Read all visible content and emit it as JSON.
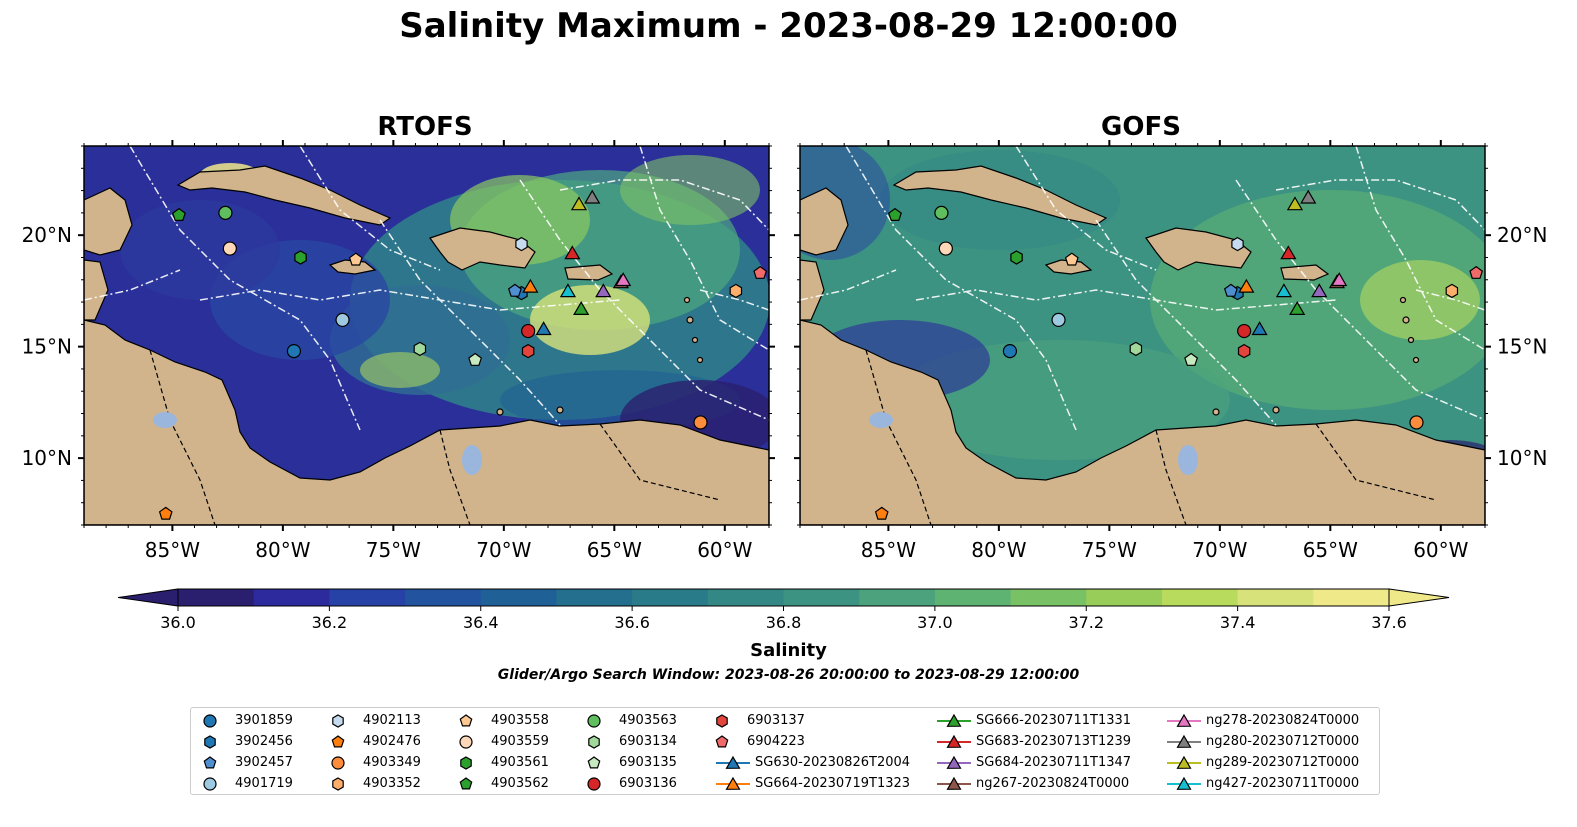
{
  "title": "Salinity Maximum - 2023-08-29 12:00:00",
  "panels": [
    {
      "name": "RTOFS"
    },
    {
      "name": "GOFS"
    }
  ],
  "axes": {
    "lon_ticks": [
      "85°W",
      "80°W",
      "75°W",
      "70°W",
      "65°W",
      "60°W"
    ],
    "lat_ticks": [
      "20°N",
      "15°N",
      "10°N"
    ],
    "lon_range": [
      -89,
      -58
    ],
    "lat_range": [
      7,
      24
    ]
  },
  "colorbar": {
    "label": "Salinity",
    "ticks": [
      "36.0",
      "36.2",
      "36.4",
      "36.6",
      "36.8",
      "37.0",
      "37.2",
      "37.4",
      "37.6"
    ],
    "range": [
      36.0,
      37.6
    ],
    "colors": [
      "#2a1f6e",
      "#2c2a9c",
      "#2742a6",
      "#22539f",
      "#1f6196",
      "#246e8e",
      "#2a7b89",
      "#338784",
      "#3d9382",
      "#4ba27c",
      "#5eb272",
      "#79c165",
      "#98cd5a",
      "#b8da5d",
      "#d7e37a",
      "#f0e98a"
    ]
  },
  "search_window": "Glider/Argo Search Window: 2023-08-26 20:00:00 to 2023-08-29 12:00:00",
  "colors": {
    "land": "#d2b48c",
    "ocean_low": "#2a1f6e",
    "eez_lines": "#ffffff",
    "rivers": "#9ab6dc"
  },
  "legend": [
    {
      "label": "3901859",
      "marker": "circle",
      "color": "#1f77b4"
    },
    {
      "label": "3902456",
      "marker": "hexagon",
      "color": "#1f77b4"
    },
    {
      "label": "3902457",
      "marker": "pentagon",
      "color": "#4f8fd0"
    },
    {
      "label": "4901719",
      "marker": "circle",
      "color": "#9ecae1"
    },
    {
      "label": "4902113",
      "marker": "hexagon",
      "color": "#c6dbef"
    },
    {
      "label": "4902476",
      "marker": "pentagon",
      "color": "#ff7f0e"
    },
    {
      "label": "4903349",
      "marker": "circle",
      "color": "#fd8d3c"
    },
    {
      "label": "4903352",
      "marker": "hexagon",
      "color": "#fdae6b"
    },
    {
      "label": "4903558",
      "marker": "pentagon",
      "color": "#fdc891"
    },
    {
      "label": "4903559",
      "marker": "circle",
      "color": "#fdd8b8"
    },
    {
      "label": "4903561",
      "marker": "hexagon",
      "color": "#2ca02c"
    },
    {
      "label": "4903562",
      "marker": "pentagon",
      "color": "#2ca02c"
    },
    {
      "label": "4903563",
      "marker": "circle",
      "color": "#5fbf5f"
    },
    {
      "label": "6903134",
      "marker": "hexagon",
      "color": "#a1d99b"
    },
    {
      "label": "6903135",
      "marker": "pentagon",
      "color": "#c7e9c0"
    },
    {
      "label": "6903136",
      "marker": "circle",
      "color": "#d62728"
    },
    {
      "label": "6903137",
      "marker": "hexagon",
      "color": "#e3443b"
    },
    {
      "label": "6904223",
      "marker": "pentagon",
      "color": "#f06a6a"
    },
    {
      "label": "SG630-20230826T2004",
      "marker": "triangle-line",
      "color": "#1f77b4"
    },
    {
      "label": "SG664-20230719T1323",
      "marker": "triangle-line",
      "color": "#ff7f0e"
    },
    {
      "label": "SG666-20230711T1331",
      "marker": "triangle-line",
      "color": "#2ca02c"
    },
    {
      "label": "SG683-20230713T1239",
      "marker": "triangle-line",
      "color": "#d62728"
    },
    {
      "label": "SG684-20230711T1347",
      "marker": "triangle-line",
      "color": "#9467bd"
    },
    {
      "label": "ng267-20230824T0000",
      "marker": "triangle-line",
      "color": "#8c564b"
    },
    {
      "label": "ng278-20230824T0000",
      "marker": "triangle-line",
      "color": "#e377c2"
    },
    {
      "label": "ng280-20230712T0000",
      "marker": "triangle-line",
      "color": "#7f7f7f"
    },
    {
      "label": "ng289-20230712T0000",
      "marker": "triangle-line",
      "color": "#bcbd22"
    },
    {
      "label": "ng427-20230711T0000",
      "marker": "triangle-line",
      "color": "#17becf"
    }
  ],
  "observations": [
    {
      "id": "3901859",
      "lon": -79.5,
      "lat": 14.8
    },
    {
      "id": "3902456",
      "lon": -69.2,
      "lat": 17.4
    },
    {
      "id": "3902457",
      "lon": -69.5,
      "lat": 17.5
    },
    {
      "id": "4901719",
      "lon": -77.3,
      "lat": 16.2
    },
    {
      "id": "4902113",
      "lon": -69.2,
      "lat": 19.6
    },
    {
      "id": "4902476",
      "lon": -85.3,
      "lat": 7.5
    },
    {
      "id": "4903349",
      "lon": -61.1,
      "lat": 11.6
    },
    {
      "id": "4903352",
      "lon": -59.5,
      "lat": 17.5
    },
    {
      "id": "4903558",
      "lon": -76.7,
      "lat": 18.9
    },
    {
      "id": "4903559",
      "lon": -82.4,
      "lat": 19.4
    },
    {
      "id": "4903561",
      "lon": -79.2,
      "lat": 19.0
    },
    {
      "id": "4903562",
      "lon": -84.7,
      "lat": 20.9
    },
    {
      "id": "4903563",
      "lon": -82.6,
      "lat": 21.0
    },
    {
      "id": "6903134",
      "lon": -73.8,
      "lat": 14.9
    },
    {
      "id": "6903135",
      "lon": -71.3,
      "lat": 14.4
    },
    {
      "id": "6903136",
      "lon": -68.9,
      "lat": 15.7
    },
    {
      "id": "6903137",
      "lon": -68.9,
      "lat": 14.8
    },
    {
      "id": "6904223",
      "lon": -58.4,
      "lat": 18.3
    },
    {
      "id": "SG630-20230826T2004",
      "lon": -68.2,
      "lat": 15.8
    },
    {
      "id": "SG664-20230719T1323",
      "lon": -68.8,
      "lat": 17.7
    },
    {
      "id": "SG666-20230711T1331",
      "lon": -66.5,
      "lat": 16.7
    },
    {
      "id": "SG683-20230713T1239",
      "lon": -66.9,
      "lat": 19.2
    },
    {
      "id": "SG684-20230711T1347",
      "lon": -65.5,
      "lat": 17.5
    },
    {
      "id": "ng267-20230824T0000",
      "lon": -64.7,
      "lat": 17.9
    },
    {
      "id": "ng278-20230824T0000",
      "lon": -64.6,
      "lat": 18.0
    },
    {
      "id": "ng280-20230712T0000",
      "lon": -66.0,
      "lat": 21.7
    },
    {
      "id": "ng289-20230712T0000",
      "lon": -66.6,
      "lat": 21.4
    },
    {
      "id": "ng427-20230711T0000",
      "lon": -67.1,
      "lat": 17.5
    }
  ]
}
